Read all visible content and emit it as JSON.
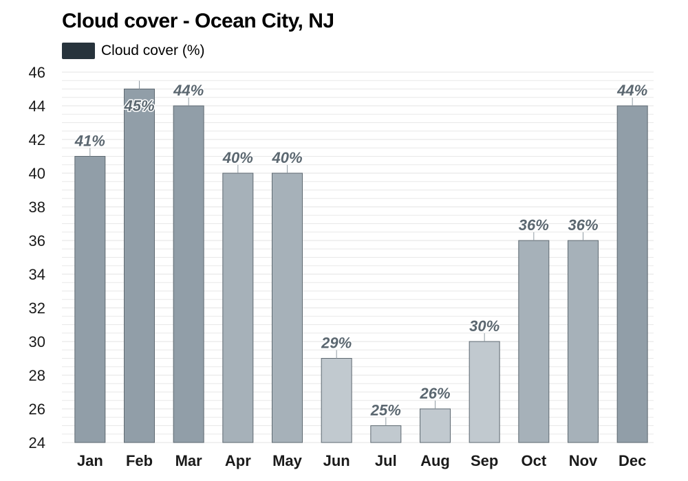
{
  "chart_data": {
    "type": "bar",
    "title": "Cloud cover - Ocean City, NJ",
    "legend": {
      "placement": "top-left",
      "entries": [
        "Cloud cover (%)"
      ]
    },
    "categories": [
      "Jan",
      "Feb",
      "Mar",
      "Apr",
      "May",
      "Jun",
      "Jul",
      "Aug",
      "Sep",
      "Oct",
      "Nov",
      "Dec"
    ],
    "series": [
      {
        "name": "Cloud cover (%)",
        "values": [
          41,
          45,
          44,
          40,
          40,
          29,
          25,
          26,
          30,
          36,
          36,
          44
        ],
        "labels": [
          "41%",
          "45%",
          "44%",
          "40%",
          "40%",
          "29%",
          "25%",
          "26%",
          "30%",
          "36%",
          "36%",
          "44%"
        ]
      }
    ],
    "xlabel": "",
    "ylabel": "",
    "ylim": [
      24,
      46
    ],
    "yticks": [
      24,
      26,
      28,
      30,
      32,
      34,
      36,
      38,
      40,
      42,
      44,
      46
    ],
    "grid": true,
    "colors": {
      "legend_swatch": "#27333c",
      "bar_high": "#919ea8",
      "bar_mid": "#a6b1b9",
      "bar_low": "#c1c9cf",
      "bar_stroke": "#5d6870",
      "grid": "#e8e8e8"
    }
  }
}
